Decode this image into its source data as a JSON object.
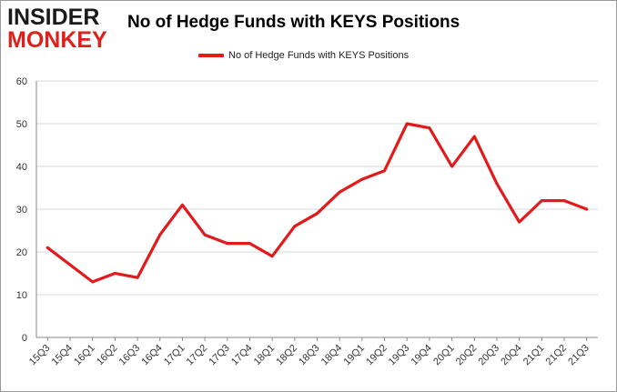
{
  "logo": {
    "line1": "INSIDER",
    "line2": "MONKEY"
  },
  "colors": {
    "series": "#e31a1c",
    "grid": "#d9d9d9",
    "axis": "#888888",
    "logo_accent": "#e0201a"
  },
  "chart_data": {
    "type": "line",
    "title": "No of Hedge Funds with KEYS Positions",
    "legend": {
      "position": "top-center",
      "entries": [
        "No of Hedge Funds with KEYS Positions"
      ]
    },
    "categories": [
      "15Q3",
      "15Q4",
      "16Q1",
      "16Q2",
      "16Q3",
      "16Q4",
      "17Q1",
      "17Q2",
      "17Q3",
      "17Q4",
      "18Q1",
      "18Q2",
      "18Q3",
      "18Q4",
      "19Q1",
      "19Q2",
      "19Q3",
      "19Q4",
      "20Q1",
      "20Q2",
      "20Q3",
      "20Q4",
      "21Q1",
      "21Q2",
      "21Q3"
    ],
    "series": [
      {
        "name": "No of Hedge Funds with KEYS Positions",
        "values": [
          21,
          17,
          13,
          15,
          14,
          24,
          31,
          24,
          22,
          22,
          19,
          26,
          29,
          34,
          37,
          39,
          50,
          49,
          40,
          47,
          36,
          27,
          32,
          32,
          30
        ]
      }
    ],
    "ylim": [
      0,
      60
    ],
    "yticks": [
      0,
      10,
      20,
      30,
      40,
      50,
      60
    ],
    "grid": true,
    "xlabel": "",
    "ylabel": ""
  }
}
